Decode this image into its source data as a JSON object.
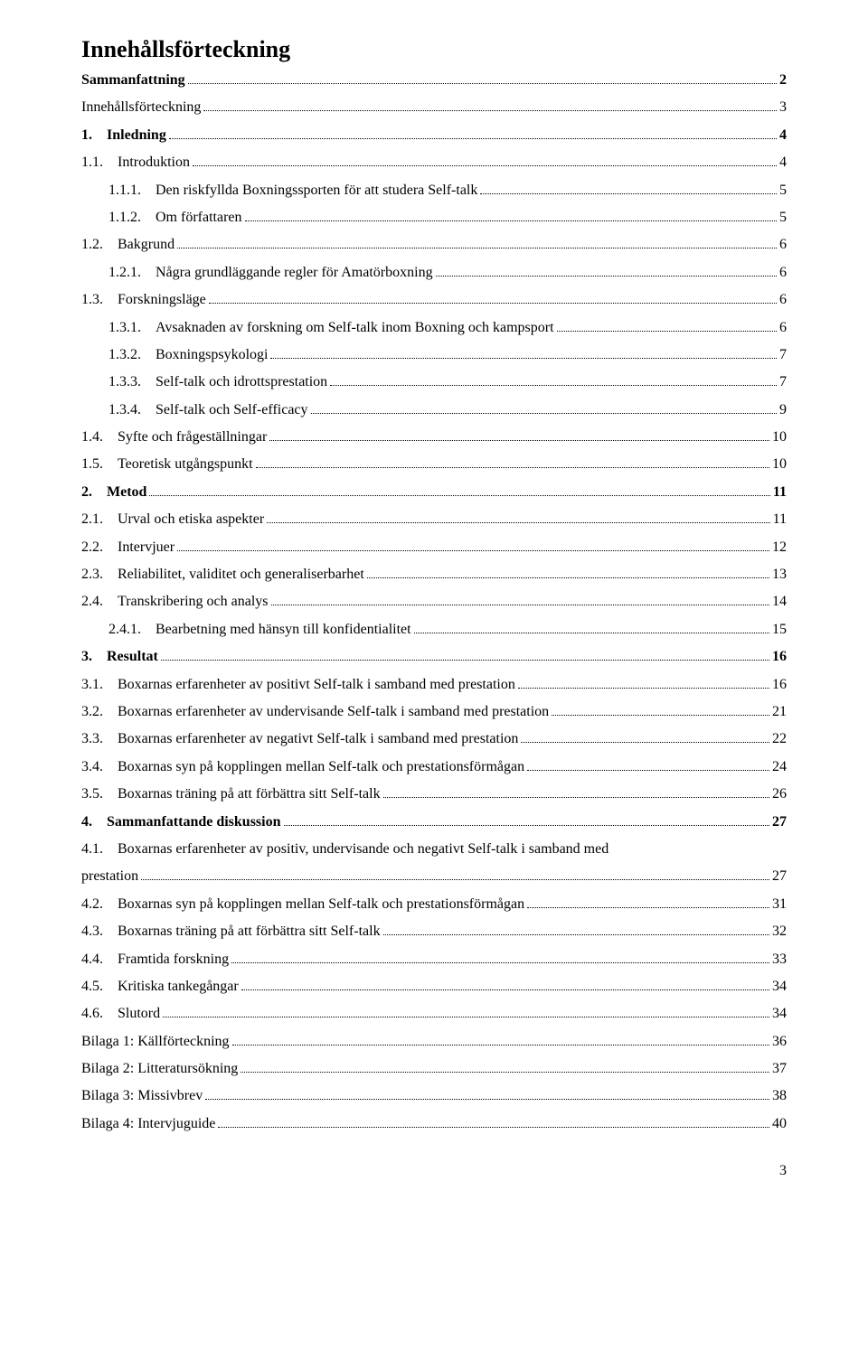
{
  "title": "Innehållsförteckning",
  "page_footer": "3",
  "toc": [
    {
      "label": "Sammanfattning",
      "page": "2",
      "indent": 0,
      "bold": true
    },
    {
      "label": "Innehållsförteckning",
      "page": "3",
      "indent": 0,
      "bold": false
    },
    {
      "label": "1. Inledning",
      "page": "4",
      "indent": 0,
      "bold": true
    },
    {
      "label": "1.1. Introduktion",
      "page": "4",
      "indent": 0,
      "bold": false
    },
    {
      "label": "1.1.1. Den riskfyllda Boxningssporten för att studera Self-talk",
      "page": "5",
      "indent": 1,
      "bold": false
    },
    {
      "label": "1.1.2. Om författaren",
      "page": "5",
      "indent": 1,
      "bold": false
    },
    {
      "label": "1.2. Bakgrund",
      "page": "6",
      "indent": 0,
      "bold": false
    },
    {
      "label": "1.2.1. Några grundläggande regler för Amatörboxning",
      "page": "6",
      "indent": 1,
      "bold": false
    },
    {
      "label": "1.3. Forskningsläge",
      "page": "6",
      "indent": 0,
      "bold": false
    },
    {
      "label": "1.3.1. Avsaknaden av forskning om Self-talk inom Boxning och kampsport",
      "page": "6",
      "indent": 1,
      "bold": false
    },
    {
      "label": "1.3.2. Boxningspsykologi",
      "page": "7",
      "indent": 1,
      "bold": false
    },
    {
      "label": "1.3.3. Self-talk och idrottsprestation",
      "page": "7",
      "indent": 1,
      "bold": false
    },
    {
      "label": "1.3.4. Self-talk och Self-efficacy",
      "page": "9",
      "indent": 1,
      "bold": false
    },
    {
      "label": "1.4. Syfte och frågeställningar",
      "page": "10",
      "indent": 0,
      "bold": false
    },
    {
      "label": "1.5. Teoretisk utgångspunkt",
      "page": "10",
      "indent": 0,
      "bold": false
    },
    {
      "label": "2. Metod",
      "page": "11",
      "indent": 0,
      "bold": true
    },
    {
      "label": "2.1. Urval och etiska aspekter",
      "page": "11",
      "indent": 0,
      "bold": false
    },
    {
      "label": "2.2. Intervjuer",
      "page": "12",
      "indent": 0,
      "bold": false
    },
    {
      "label": "2.3. Reliabilitet, validitet och generaliserbarhet",
      "page": "13",
      "indent": 0,
      "bold": false
    },
    {
      "label": "2.4. Transkribering och analys",
      "page": "14",
      "indent": 0,
      "bold": false
    },
    {
      "label": "2.4.1. Bearbetning med hänsyn till konfidentialitet",
      "page": "15",
      "indent": 1,
      "bold": false
    },
    {
      "label": "3. Resultat",
      "page": "16",
      "indent": 0,
      "bold": true
    },
    {
      "label": "3.1. Boxarnas erfarenheter av positivt Self-talk i samband med prestation",
      "page": "16",
      "indent": 0,
      "bold": false
    },
    {
      "label": "3.2. Boxarnas erfarenheter av undervisande Self-talk i samband med prestation",
      "page": "21",
      "indent": 0,
      "bold": false
    },
    {
      "label": "3.3. Boxarnas erfarenheter av negativt Self-talk i samband med prestation",
      "page": "22",
      "indent": 0,
      "bold": false
    },
    {
      "label": "3.4. Boxarnas syn på kopplingen mellan Self-talk och prestationsförmågan",
      "page": "24",
      "indent": 0,
      "bold": false
    },
    {
      "label": "3.5. Boxarnas träning på att förbättra sitt Self-talk",
      "page": "26",
      "indent": 0,
      "bold": false
    },
    {
      "label": "4. Sammanfattande diskussion",
      "page": "27",
      "indent": 0,
      "bold": true
    },
    {
      "label": "4.1. Boxarnas erfarenheter av positiv, undervisande och negativt Self-talk i samband med prestation",
      "page": "27",
      "indent": 0,
      "bold": false,
      "wrap": true
    },
    {
      "label": "4.2. Boxarnas syn på kopplingen mellan Self-talk och prestationsförmågan",
      "page": "31",
      "indent": 0,
      "bold": false
    },
    {
      "label": "4.3. Boxarnas träning på att förbättra sitt Self-talk",
      "page": "32",
      "indent": 0,
      "bold": false
    },
    {
      "label": "4.4. Framtida forskning",
      "page": "33",
      "indent": 0,
      "bold": false
    },
    {
      "label": "4.5. Kritiska tankegångar",
      "page": "34",
      "indent": 0,
      "bold": false
    },
    {
      "label": "4.6. Slutord",
      "page": "34",
      "indent": 0,
      "bold": false
    },
    {
      "label": "Bilaga 1: Källförteckning",
      "page": "36",
      "indent": 0,
      "bold": false
    },
    {
      "label": "Bilaga 2: Litteratursökning",
      "page": "37",
      "indent": 0,
      "bold": false
    },
    {
      "label": "Bilaga 3: Missivbrev",
      "page": "38",
      "indent": 0,
      "bold": false
    },
    {
      "label": "Bilaga 4: Intervjuguide",
      "page": "40",
      "indent": 0,
      "bold": false
    }
  ],
  "wrap_entry": {
    "line1": "4.1. Boxarnas erfarenheter av positiv, undervisande och negativt Self-talk i samband med",
    "line2": "prestation"
  }
}
